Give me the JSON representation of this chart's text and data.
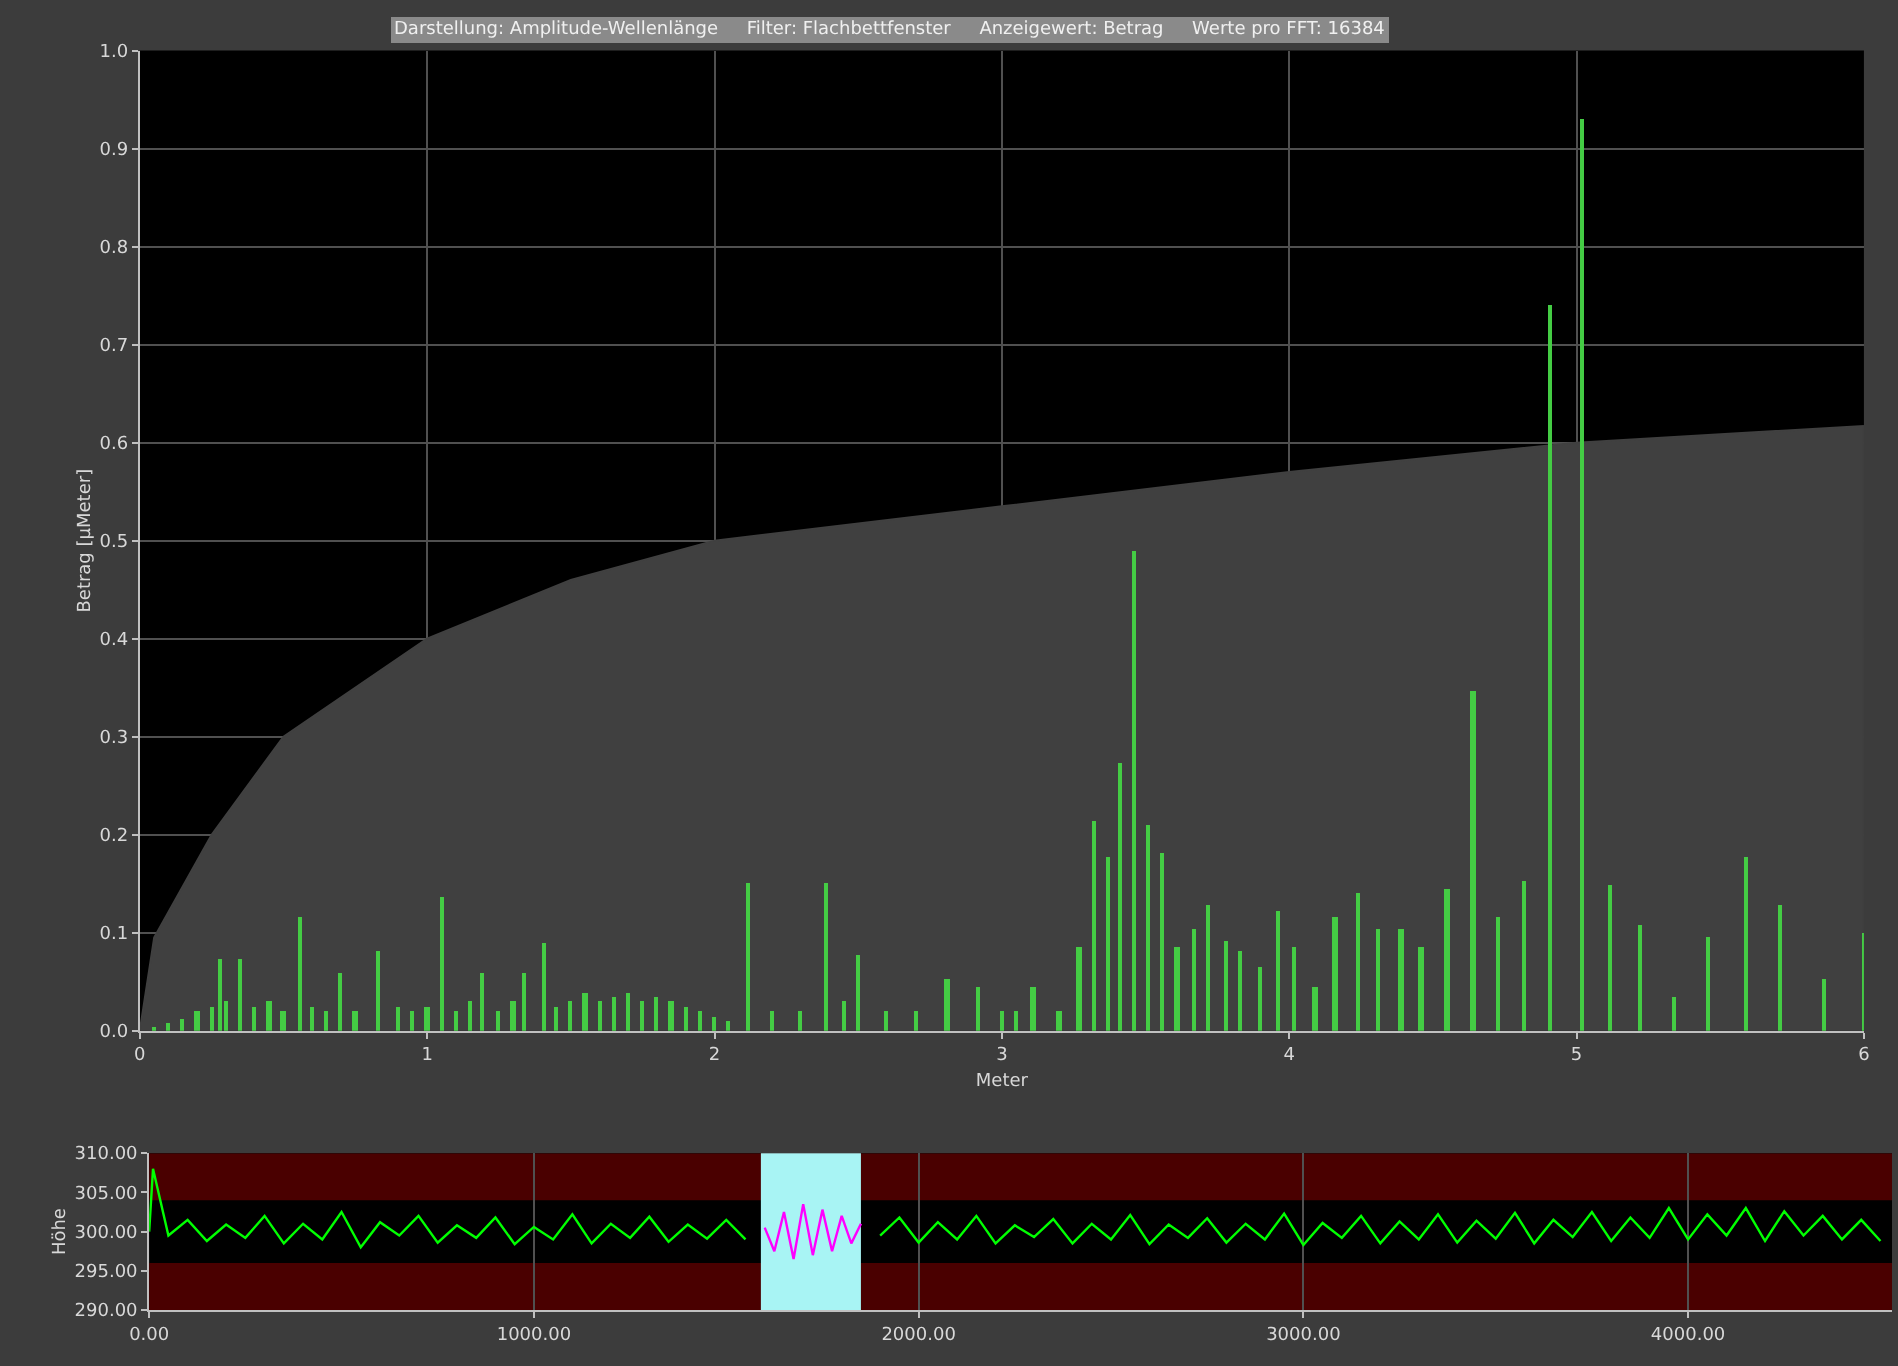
{
  "chart_data": [
    {
      "type": "bar",
      "title": "Darstellung: Amplitude-Wellenlänge     Filter: Flachbettfenster     Anzeigewert: Betrag     Werte pro FFT: 16384",
      "xlabel": "Meter",
      "ylabel": "Betrag [µMeter]",
      "xlim": [
        0,
        6
      ],
      "xticks": [
        0,
        1,
        2,
        3,
        4,
        5,
        6
      ],
      "ylim": [
        0,
        1
      ],
      "yticks": [
        {
          "value": 0,
          "label": "0.0"
        },
        {
          "value": 0.1,
          "label": "0.1"
        },
        {
          "value": 0.2,
          "label": "0.2"
        },
        {
          "value": 0.3,
          "label": "0.3"
        },
        {
          "value": 0.4,
          "label": "0.4"
        },
        {
          "value": 0.5,
          "label": "0.5"
        },
        {
          "value": 0.6,
          "label": "0.6"
        },
        {
          "value": 0.7,
          "label": "0.7"
        },
        {
          "value": 0.8,
          "label": "0.8"
        },
        {
          "value": 0.9,
          "label": "0.9"
        },
        {
          "value": 1,
          "label": "1.0"
        }
      ],
      "grid": true,
      "series": [
        {
          "type": "area",
          "color": "#404040",
          "x": [
            0,
            0.05,
            0.25,
            0.5,
            1.0,
            1.5,
            2.0,
            3.0,
            4.0,
            5.0,
            6.0
          ],
          "values": [
            0,
            0.095,
            0.2,
            0.3,
            0.4,
            0.46,
            0.5,
            0.535,
            0.57,
            0.6,
            0.617
          ]
        },
        {
          "type": "bar",
          "color": "#44cc44",
          "x": [
            0.05,
            0.1,
            0.15,
            0.2,
            0.25,
            0.28,
            0.3,
            0.35,
            0.4,
            0.45,
            0.5,
            0.56,
            0.6,
            0.65,
            0.7,
            0.75,
            0.83,
            0.9,
            0.95,
            1.0,
            1.05,
            1.1,
            1.15,
            1.19,
            1.25,
            1.3,
            1.34,
            1.41,
            1.45,
            1.5,
            1.55,
            1.6,
            1.65,
            1.7,
            1.75,
            1.8,
            1.85,
            1.9,
            1.95,
            2.0,
            2.05,
            2.12,
            2.2,
            2.3,
            2.39,
            2.45,
            2.5,
            2.6,
            2.7,
            2.81,
            2.92,
            3.0,
            3.05,
            3.11,
            3.2,
            3.27,
            3.32,
            3.37,
            3.41,
            3.46,
            3.51,
            3.56,
            3.61,
            3.67,
            3.72,
            3.78,
            3.83,
            3.9,
            3.96,
            4.02,
            4.09,
            4.16,
            4.24,
            4.31,
            4.39,
            4.46,
            4.55,
            4.64,
            4.73,
            4.82,
            4.91,
            5.02,
            5.12,
            5.22,
            5.34,
            5.46,
            5.59,
            5.71,
            5.86,
            6.0
          ],
          "values": [
            0.005,
            0.008,
            0.012,
            0.02,
            0.025,
            0.073,
            0.03,
            0.073,
            0.025,
            0.03,
            0.02,
            0.116,
            0.025,
            0.02,
            0.06,
            0.02,
            0.082,
            0.025,
            0.02,
            0.025,
            0.137,
            0.02,
            0.03,
            0.06,
            0.02,
            0.03,
            0.06,
            0.089,
            0.025,
            0.03,
            0.04,
            0.03,
            0.035,
            0.04,
            0.03,
            0.035,
            0.03,
            0.025,
            0.02,
            0.015,
            0.01,
            0.151,
            0.02,
            0.02,
            0.151,
            0.03,
            0.078,
            0.02,
            0.02,
            0.054,
            0.046,
            0.02,
            0.02,
            0.046,
            0.02,
            0.085,
            0.215,
            0.177,
            0.274,
            0.49,
            0.21,
            0.181,
            0.085,
            0.104,
            0.129,
            0.093,
            0.081,
            0.066,
            0.123,
            0.085,
            0.046,
            0.117,
            0.141,
            0.104,
            0.105,
            0.085,
            0.145,
            0.348,
            0.117,
            0.153,
            0.74,
            0.93,
            0.149,
            0.109,
            0.034,
            0.097,
            0.177,
            0.129,
            0.054,
            0.101
          ]
        }
      ]
    },
    {
      "type": "line",
      "ylabel": "Höhe",
      "xlim": [
        0,
        4530
      ],
      "xticks": [
        {
          "value": 0,
          "label": "0.00"
        },
        {
          "value": 1000,
          "label": "1000.00"
        },
        {
          "value": 2000,
          "label": "2000.00"
        },
        {
          "value": 3000,
          "label": "3000.00"
        },
        {
          "value": 4000,
          "label": "4000.00"
        }
      ],
      "ylim": [
        290,
        310
      ],
      "yticks": [
        {
          "value": 290,
          "label": "290.00"
        },
        {
          "value": 295,
          "label": "295.00"
        },
        {
          "value": 300,
          "label": "300.00"
        },
        {
          "value": 305,
          "label": "305.00"
        },
        {
          "value": 310,
          "label": "310.00"
        }
      ],
      "grid": "x",
      "bands": [
        {
          "axis": "y",
          "from": 304,
          "to": 310,
          "color": "#4a0000"
        },
        {
          "axis": "y",
          "from": 290,
          "to": 296,
          "color": "#4a0000"
        },
        {
          "axis": "x",
          "from": 1590,
          "to": 1850,
          "color": "#a8f4f4"
        }
      ],
      "series": [
        {
          "color": "#00ff00",
          "x": [
            0,
            10,
            50,
            100,
            150,
            200,
            250,
            300,
            350,
            400,
            450,
            500,
            550,
            600,
            650,
            700,
            750,
            800,
            850,
            900,
            950,
            1000,
            1050,
            1100,
            1150,
            1200,
            1250,
            1300,
            1350,
            1400,
            1450,
            1500,
            1550
          ],
          "values": [
            300,
            308,
            299.5,
            301.5,
            298.8,
            300.9,
            299.2,
            302,
            298.5,
            301,
            299,
            302.5,
            298,
            301.2,
            299.5,
            302,
            298.6,
            300.8,
            299.2,
            301.8,
            298.4,
            300.6,
            299,
            302.2,
            298.5,
            301,
            299.2,
            301.9,
            298.7,
            300.9,
            299.1,
            301.5,
            299
          ]
        },
        {
          "color": "#ff00ff",
          "x": [
            1600,
            1625,
            1650,
            1675,
            1700,
            1725,
            1750,
            1775,
            1800,
            1825,
            1850
          ],
          "values": [
            300.5,
            297.5,
            302.5,
            296.5,
            303.5,
            297,
            302.8,
            297.5,
            302,
            298.5,
            301
          ]
        },
        {
          "color": "#00ff00",
          "x": [
            1900,
            1950,
            2000,
            2050,
            2100,
            2150,
            2200,
            2250,
            2300,
            2350,
            2400,
            2450,
            2500,
            2550,
            2600,
            2650,
            2700,
            2750,
            2800,
            2850,
            2900,
            2950,
            3000,
            3050,
            3100,
            3150,
            3200,
            3250,
            3300,
            3350,
            3400,
            3450,
            3500,
            3550,
            3600,
            3650,
            3700,
            3750,
            3800,
            3850,
            3900,
            3950,
            4000,
            4050,
            4100,
            4150,
            4200,
            4250,
            4300,
            4350,
            4400,
            4450,
            4500
          ],
          "values": [
            299.5,
            301.8,
            298.6,
            301.2,
            299,
            302,
            298.5,
            300.8,
            299.3,
            301.6,
            298.5,
            301,
            299,
            302.1,
            298.4,
            300.9,
            299.2,
            301.7,
            298.6,
            301,
            299,
            302.3,
            298.3,
            301.1,
            299.2,
            302,
            298.5,
            301.3,
            299,
            302.2,
            298.6,
            301.4,
            299.1,
            302.4,
            298.5,
            301.5,
            299.3,
            302.5,
            298.8,
            301.8,
            299.2,
            303,
            299,
            302.2,
            299.5,
            303,
            298.8,
            302.6,
            299.5,
            302,
            299,
            301.5,
            298.8
          ]
        }
      ]
    }
  ]
}
